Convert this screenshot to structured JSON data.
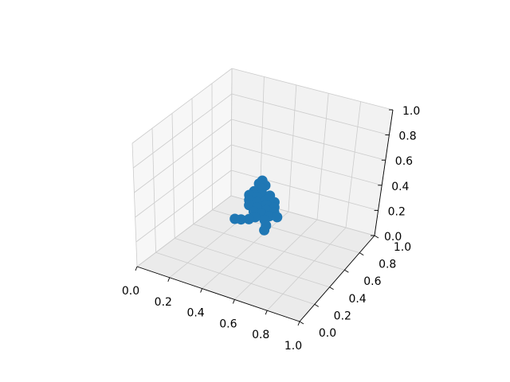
{
  "chart_data": {
    "type": "scatter",
    "projection": "3d",
    "title": "",
    "xlabel": "",
    "ylabel": "",
    "zlabel": "",
    "xlim": [
      0,
      1
    ],
    "ylim": [
      0,
      1
    ],
    "zlim": [
      0,
      1
    ],
    "grid": true,
    "legend": "none",
    "x_ticks": [
      "0.0",
      "0.2",
      "0.4",
      "0.6",
      "0.8",
      "1.0"
    ],
    "y_ticks": [
      "0.0",
      "0.2",
      "0.4",
      "0.6",
      "0.8",
      "1.0"
    ],
    "z_ticks": [
      "0.0",
      "0.2",
      "0.4",
      "0.6",
      "0.8",
      "1.0"
    ],
    "marker_color": "#1f77b4",
    "pane_colors": [
      "#f2f2f2",
      "#ebebeb",
      "#f7f7f7"
    ],
    "grid_color": "#cccccc",
    "series": [
      {
        "points": [
          {
            "x": 0.5,
            "y": 0.5,
            "z": 0.58
          },
          {
            "x": 0.48,
            "y": 0.5,
            "z": 0.55
          },
          {
            "x": 0.52,
            "y": 0.5,
            "z": 0.55
          },
          {
            "x": 0.5,
            "y": 0.5,
            "z": 0.52
          },
          {
            "x": 0.45,
            "y": 0.5,
            "z": 0.48
          },
          {
            "x": 0.5,
            "y": 0.5,
            "z": 0.48
          },
          {
            "x": 0.55,
            "y": 0.5,
            "z": 0.48
          },
          {
            "x": 0.42,
            "y": 0.5,
            "z": 0.44
          },
          {
            "x": 0.47,
            "y": 0.5,
            "z": 0.44
          },
          {
            "x": 0.53,
            "y": 0.5,
            "z": 0.44
          },
          {
            "x": 0.58,
            "y": 0.5,
            "z": 0.44
          },
          {
            "x": 0.42,
            "y": 0.5,
            "z": 0.4
          },
          {
            "x": 0.47,
            "y": 0.5,
            "z": 0.4
          },
          {
            "x": 0.53,
            "y": 0.5,
            "z": 0.4
          },
          {
            "x": 0.58,
            "y": 0.5,
            "z": 0.4
          },
          {
            "x": 0.42,
            "y": 0.5,
            "z": 0.36
          },
          {
            "x": 0.47,
            "y": 0.5,
            "z": 0.36
          },
          {
            "x": 0.53,
            "y": 0.5,
            "z": 0.36
          },
          {
            "x": 0.58,
            "y": 0.5,
            "z": 0.36
          },
          {
            "x": 0.45,
            "y": 0.5,
            "z": 0.32
          },
          {
            "x": 0.5,
            "y": 0.5,
            "z": 0.32
          },
          {
            "x": 0.55,
            "y": 0.5,
            "z": 0.32
          },
          {
            "x": 0.6,
            "y": 0.5,
            "z": 0.33
          },
          {
            "x": 0.46,
            "y": 0.5,
            "z": 0.28
          },
          {
            "x": 0.52,
            "y": 0.5,
            "z": 0.28
          },
          {
            "x": 0.53,
            "y": 0.5,
            "z": 0.24
          },
          {
            "x": 0.52,
            "y": 0.5,
            "z": 0.2
          },
          {
            "x": 0.42,
            "y": 0.5,
            "z": 0.25
          },
          {
            "x": 0.37,
            "y": 0.5,
            "z": 0.23
          },
          {
            "x": 0.33,
            "y": 0.5,
            "z": 0.22
          }
        ]
      }
    ]
  }
}
